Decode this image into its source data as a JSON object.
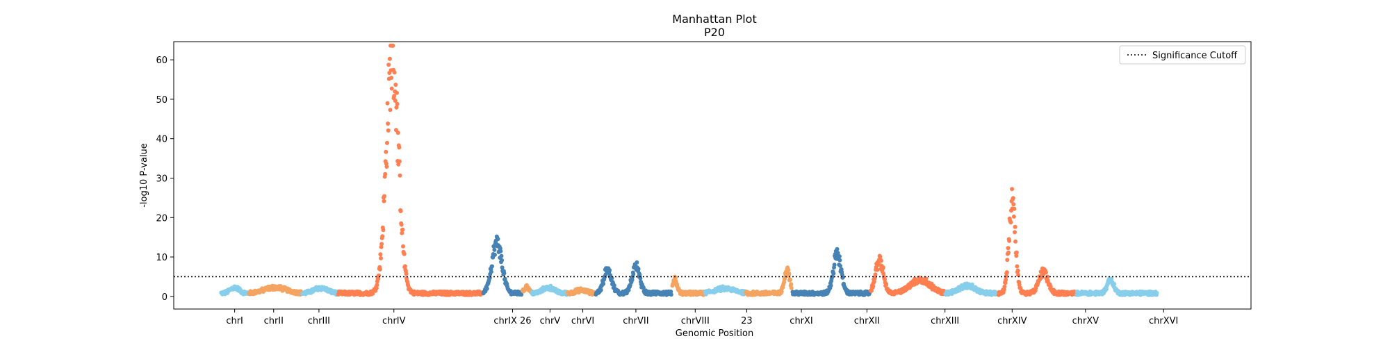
{
  "chart_data": {
    "type": "scatter",
    "title": "Manhattan Plot",
    "subtitle": "P20",
    "xlabel": "Genomic Position",
    "ylabel": "-log10 P-value",
    "ylim": [
      -3.2,
      64.6
    ],
    "yticks": [
      0,
      10,
      20,
      30,
      40,
      50,
      60
    ],
    "legend": {
      "position": "top-right",
      "entries": [
        "Significance Cutoff"
      ]
    },
    "significance_cutoff": 5,
    "grid": false,
    "colors": {
      "light_blue": "#87ceeb",
      "light_orange": "#f4a460",
      "dark_orange": "#ff7f50",
      "dark_blue": "#4682b4",
      "axis": "#000000"
    },
    "chromosomes": [
      {
        "label": "chrI",
        "start": 0.0,
        "end": 1.8,
        "color": "light_blue",
        "peaks": [
          {
            "at": 0.9,
            "height": 1.5,
            "width": 0.4
          }
        ]
      },
      {
        "label": "chrII",
        "start": 1.8,
        "end": 5.2,
        "color": "light_orange",
        "peaks": [
          {
            "at": 3.5,
            "height": 1.5,
            "width": 1.0
          }
        ]
      },
      {
        "label": "chrIII",
        "start": 5.2,
        "end": 7.5,
        "color": "light_blue",
        "peaks": [
          {
            "at": 6.4,
            "height": 1.4,
            "width": 0.6
          }
        ]
      },
      {
        "label": "chrIV",
        "start": 7.5,
        "end": 16.8,
        "color": "dark_orange",
        "peaks": [
          {
            "at": 11.0,
            "height": 61,
            "width": 0.55
          }
        ]
      },
      {
        "label": "chrIX",
        "start": 16.8,
        "end": 19.3,
        "color": "dark_blue",
        "peaks": [
          {
            "at": 17.7,
            "height": 13,
            "width": 0.45
          }
        ]
      },
      {
        "label": "26",
        "start": 19.3,
        "end": 19.9,
        "color": "light_orange",
        "peaks": [
          {
            "at": 19.6,
            "height": 1.8,
            "width": 0.2
          }
        ]
      },
      {
        "label": "chrV",
        "start": 19.9,
        "end": 22.2,
        "color": "light_blue",
        "peaks": [
          {
            "at": 21.0,
            "height": 1.5,
            "width": 0.5
          }
        ]
      },
      {
        "label": "chrVI",
        "start": 22.2,
        "end": 24.0,
        "color": "light_orange",
        "peaks": [
          {
            "at": 23.1,
            "height": 0.8,
            "width": 0.5
          }
        ]
      },
      {
        "label": "chrVII",
        "start": 24.0,
        "end": 28.9,
        "color": "dark_blue",
        "peaks": [
          {
            "at": 24.8,
            "height": 6.2,
            "width": 0.35
          },
          {
            "at": 26.6,
            "height": 7.0,
            "width": 0.35
          }
        ]
      },
      {
        "label": "chrVIII",
        "start": 28.9,
        "end": 31.0,
        "color": "light_orange",
        "peaks": [
          {
            "at": 29.1,
            "height": 3.8,
            "width": 0.2
          }
        ]
      },
      {
        "label": "23",
        "start": 31.0,
        "end": 33.6,
        "color": "light_blue",
        "peaks": [
          {
            "at": 32.3,
            "height": 1.2,
            "width": 0.9
          }
        ]
      },
      {
        "label": "chrXI",
        "start": 33.6,
        "end": 36.6,
        "color": "light_orange",
        "peaks": [
          {
            "at": 36.3,
            "height": 6.0,
            "width": 0.25
          }
        ]
      },
      {
        "label": "chrXII",
        "start": 36.6,
        "end": 41.6,
        "color": "dark_blue",
        "peaks": [
          {
            "at": 39.5,
            "height": 10.0,
            "width": 0.35
          }
        ]
      },
      {
        "label": "chrXIII",
        "start": 41.6,
        "end": 46.4,
        "color": "dark_orange",
        "peaks": [
          {
            "at": 42.2,
            "height": 8.6,
            "width": 0.35
          },
          {
            "at": 44.8,
            "height": 3.5,
            "width": 0.9
          }
        ]
      },
      {
        "label": "chrXIV",
        "start": 46.4,
        "end": 49.8,
        "color": "light_blue",
        "peaks": [
          {
            "at": 47.8,
            "height": 2.0,
            "width": 0.7
          }
        ]
      },
      {
        "label": "chrXV",
        "start": 49.8,
        "end": 54.8,
        "color": "dark_orange",
        "peaks": [
          {
            "at": 50.7,
            "height": 23.5,
            "width": 0.3
          },
          {
            "at": 52.7,
            "height": 5.5,
            "width": 0.4
          }
        ]
      },
      {
        "label": "chrXVI",
        "start": 54.8,
        "end": 60.0,
        "color": "light_blue",
        "peaks": [
          {
            "at": 57.0,
            "height": 3.5,
            "width": 0.3
          }
        ]
      }
    ],
    "tick_positions": [
      {
        "label": "chrI",
        "x": 0.9
      },
      {
        "label": "chrII",
        "x": 3.4
      },
      {
        "label": "chrIII",
        "x": 6.3
      },
      {
        "label": "chrIV",
        "x": 11.1
      },
      {
        "label": "chrIX 26",
        "x": 18.7
      },
      {
        "label": "chrV",
        "x": 21.1
      },
      {
        "label": "chrVI",
        "x": 23.2
      },
      {
        "label": "chrVII",
        "x": 26.6
      },
      {
        "label": "chrVIII",
        "x": 30.4
      },
      {
        "label": "23",
        "x": 33.7
      },
      {
        "label": "chrXI",
        "x": 37.2
      },
      {
        "label": "chrXII",
        "x": 41.4
      },
      {
        "label": "chrXIII",
        "x": 46.4
      },
      {
        "label": "chrXIV",
        "x": 50.7
      },
      {
        "label": "chrXV",
        "x": 55.4
      },
      {
        "label": "chrXVI",
        "x": 60.4
      }
    ],
    "xlim": [
      -3.0,
      66.0
    ]
  }
}
